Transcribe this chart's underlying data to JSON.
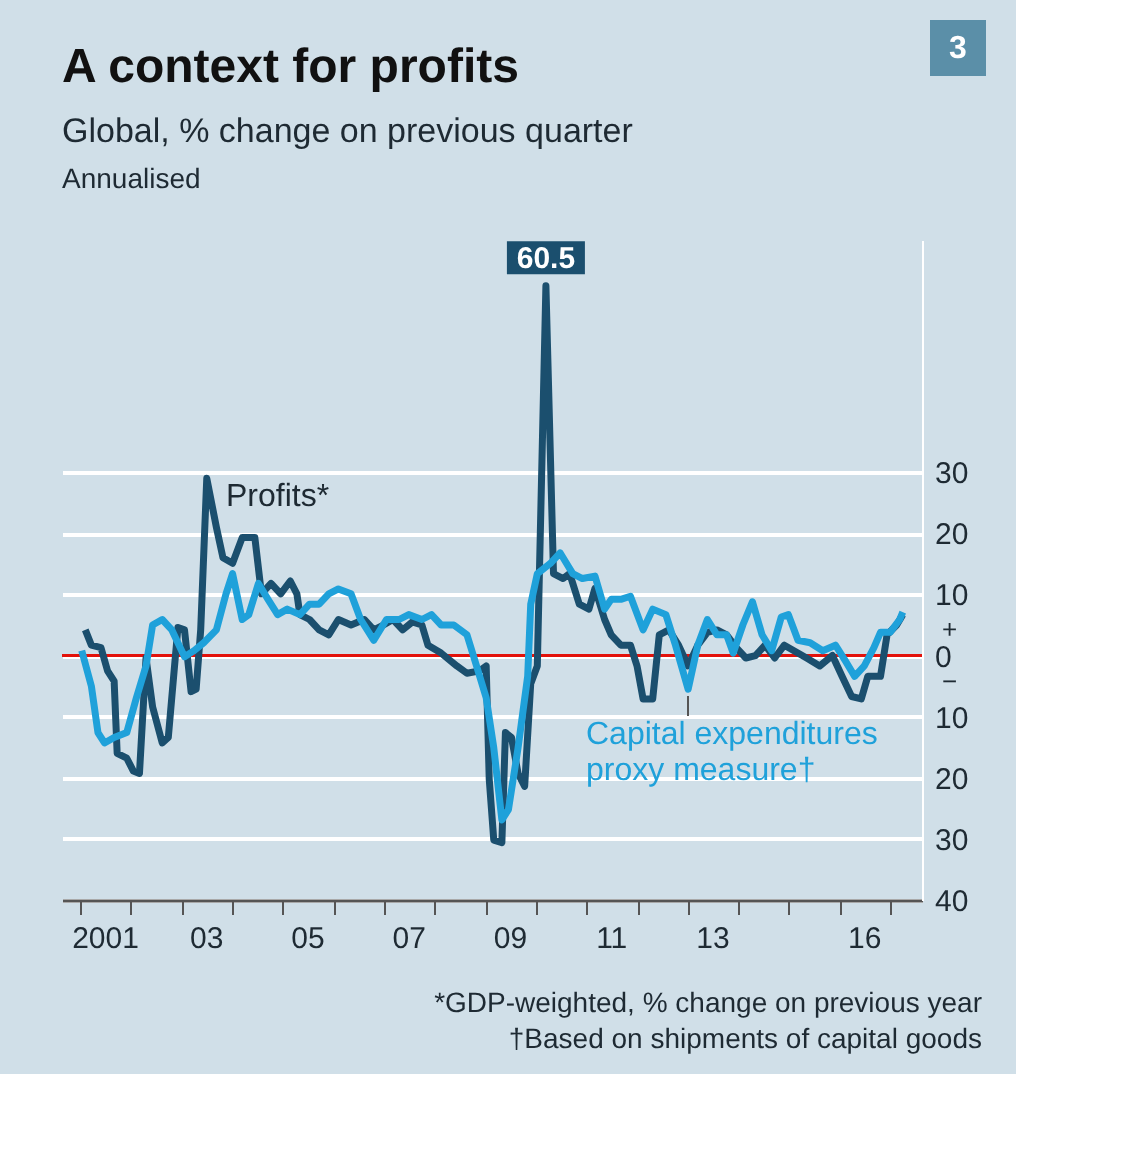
{
  "chart_data": {
    "type": "line",
    "title": "A context for profits",
    "subtitle": "Global, % change on previous quarter",
    "annotations": [
      "Annualised",
      "*GDP-weighted, % change on previous year",
      "†Based on shipments of capital goods",
      "3",
      "+",
      "−"
    ],
    "xlim": [
      2000.14,
      2017.13
    ],
    "xticks": [
      {
        "value": 2000.5,
        "label": null
      },
      {
        "value": 2001.5,
        "label": null
      },
      {
        "value": 2002.5,
        "label": null
      },
      {
        "value": 2003.5,
        "label": null
      },
      {
        "value": 2004.5,
        "label": null
      },
      {
        "value": 2005.5,
        "label": null
      },
      {
        "value": 2006.5,
        "label": null
      },
      {
        "value": 2007.5,
        "label": null
      },
      {
        "value": 2008.5,
        "label": null
      },
      {
        "value": 2009.5,
        "label": null
      },
      {
        "value": 2010.5,
        "label": null
      },
      {
        "value": 2011.5,
        "label": null
      },
      {
        "value": 2012.5,
        "label": null
      },
      {
        "value": 2013.5,
        "label": null
      },
      {
        "value": 2014.5,
        "label": null
      },
      {
        "value": 2015.5,
        "label": null
      },
      {
        "value": 2016.5,
        "label": null
      },
      {
        "value": 2001,
        "label": "2001"
      },
      {
        "value": 2003,
        "label": "03"
      },
      {
        "value": 2005,
        "label": "05"
      },
      {
        "value": 2007,
        "label": "07"
      },
      {
        "value": 2009,
        "label": "09"
      },
      {
        "value": 2011,
        "label": "11"
      },
      {
        "value": 2013,
        "label": "13"
      },
      {
        "value": 2016,
        "label": "16"
      }
    ],
    "ylim": [
      -40,
      68
    ],
    "yticks": [
      30,
      20,
      10,
      0,
      {
        "value": -10,
        "label": "10"
      },
      {
        "value": -20,
        "label": "20"
      },
      {
        "value": -30,
        "label": "30"
      },
      {
        "value": -40,
        "label": "40"
      }
    ],
    "grid": "y",
    "legend": false,
    "ref_lines": [
      {
        "axis": "y",
        "value": 0,
        "color": "#e3120b"
      }
    ],
    "series": [
      {
        "name": "Profits*",
        "color": "#1b4f6e",
        "x": [
          2000.6,
          2000.72,
          2000.91,
          2001.04,
          2001.17,
          2001.23,
          2001.42,
          2001.55,
          2001.67,
          2001.8,
          2001.93,
          2002.12,
          2002.24,
          2002.43,
          2002.56,
          2002.69,
          2002.79,
          2002.88,
          2003.0,
          2003.19,
          2003.32,
          2003.51,
          2003.7,
          2003.95,
          2004.08,
          2004.27,
          2004.46,
          2004.65,
          2004.78,
          2004.84,
          2005.03,
          2005.22,
          2005.41,
          2005.6,
          2005.85,
          2006.11,
          2006.3,
          2006.49,
          2006.68,
          2006.87,
          2007.06,
          2007.25,
          2007.37,
          2007.63,
          2007.94,
          2008.14,
          2008.39,
          2008.52,
          2008.58,
          2008.67,
          2008.83,
          2008.9,
          2009.02,
          2009.15,
          2009.28,
          2009.4,
          2009.53,
          2009.7,
          2009.85,
          2010.04,
          2010.17,
          2010.36,
          2010.55,
          2010.67,
          2010.86,
          2010.99,
          2011.18,
          2011.37,
          2011.5,
          2011.62,
          2011.81,
          2011.94,
          2012.13,
          2012.32,
          2012.51,
          2012.7,
          2012.89,
          2013.08,
          2013.27,
          2013.46,
          2013.65,
          2013.84,
          2014.03,
          2014.22,
          2014.41,
          2014.6,
          2014.85,
          2015.11,
          2015.36,
          2015.55,
          2015.74,
          2015.93,
          2016.06,
          2016.31,
          2016.44,
          2016.63,
          2016.75
        ],
        "values": [
          4.2,
          1.7,
          1.3,
          -2.5,
          -4.2,
          -16,
          -16.8,
          -18.9,
          -19.3,
          -0.4,
          -8.4,
          -14.3,
          -13.4,
          4.6,
          4.2,
          -5.9,
          -5.5,
          4.2,
          29,
          21,
          16,
          15.1,
          19.3,
          19.3,
          10.1,
          11.8,
          10.1,
          12.2,
          10.1,
          6.7,
          5.9,
          4.2,
          3.4,
          5.9,
          5.0,
          5.9,
          4.2,
          5.0,
          5.9,
          4.2,
          5.5,
          5.0,
          1.7,
          0.4,
          -1.7,
          -2.9,
          -2.5,
          -1.7,
          -20.2,
          -30.2,
          -30.6,
          -12.6,
          -13.4,
          -19.3,
          -21.4,
          -4.6,
          -1.7,
          60.5,
          13.4,
          12.6,
          13.4,
          8.4,
          7.6,
          11,
          5.9,
          3.4,
          1.7,
          1.7,
          -1.7,
          -7.1,
          -7.1,
          3.4,
          4.2,
          1.7,
          -1.7,
          1.7,
          3.8,
          4.2,
          3.4,
          1.3,
          -0.4,
          0,
          1.7,
          -0.4,
          1.7,
          0.8,
          -0.4,
          -1.7,
          0,
          -3.4,
          -6.7,
          -7.1,
          -3.4,
          -3.4,
          3.4,
          5.0,
          6.7
        ],
        "value_labels": [
          null,
          null,
          null,
          null,
          null,
          null,
          null,
          null,
          null,
          null,
          null,
          null,
          null,
          null,
          null,
          null,
          null,
          null,
          null,
          null,
          null,
          null,
          null,
          null,
          null,
          null,
          null,
          null,
          null,
          null,
          null,
          null,
          null,
          null,
          null,
          null,
          null,
          null,
          null,
          null,
          null,
          null,
          null,
          null,
          null,
          null,
          null,
          null,
          null,
          null,
          null,
          null,
          null,
          null,
          null,
          null,
          null,
          "60.5",
          null,
          null,
          null,
          null,
          null,
          null,
          null,
          null,
          null,
          null,
          null,
          null,
          null,
          null,
          null,
          null,
          null,
          null,
          null,
          null,
          null,
          null,
          null,
          null,
          null,
          null,
          null,
          null,
          null,
          null,
          null,
          null,
          null,
          null,
          null,
          null,
          null,
          null,
          null
        ]
      },
      {
        "name": "Capital expenditures\nproxy measure†",
        "color": "#1fa1da",
        "x": [
          2000.53,
          2000.72,
          2000.85,
          2000.98,
          2001.17,
          2001.42,
          2001.61,
          2001.8,
          2001.93,
          2002.12,
          2002.31,
          2002.56,
          2002.75,
          2002.94,
          2003.19,
          2003.38,
          2003.51,
          2003.7,
          2003.83,
          2004.02,
          2004.21,
          2004.4,
          2004.59,
          2004.84,
          2005.03,
          2005.22,
          2005.41,
          2005.6,
          2005.85,
          2006.04,
          2006.3,
          2006.55,
          2006.8,
          2006.99,
          2007.25,
          2007.44,
          2007.63,
          2007.88,
          2008.14,
          2008.33,
          2008.52,
          2008.67,
          2008.83,
          2008.96,
          2009.15,
          2009.34,
          2009.4,
          2009.53,
          2009.79,
          2009.98,
          2010.04,
          2010.23,
          2010.42,
          2010.67,
          2010.86,
          2010.99,
          2011.18,
          2011.37,
          2011.62,
          2011.81,
          2012.07,
          2012.26,
          2012.51,
          2012.7,
          2012.89,
          2013.08,
          2013.27,
          2013.4,
          2013.59,
          2013.78,
          2013.97,
          2014.16,
          2014.35,
          2014.49,
          2014.68,
          2014.92,
          2015.17,
          2015.42,
          2015.61,
          2015.8,
          2015.99,
          2016.18,
          2016.31,
          2016.5,
          2016.69,
          2016.75
        ],
        "values": [
          0.8,
          -5.0,
          -12.6,
          -14.3,
          -13.4,
          -12.6,
          -6.9,
          -1.7,
          5.0,
          5.9,
          4.2,
          -0.2,
          0.8,
          2.1,
          4.2,
          10.1,
          13.4,
          5.9,
          6.7,
          11.8,
          9.2,
          6.7,
          7.6,
          6.7,
          8.4,
          8.4,
          10.1,
          10.9,
          10.1,
          5.9,
          2.5,
          5.9,
          5.9,
          6.7,
          5.9,
          6.7,
          5.0,
          5.0,
          3.4,
          -1.7,
          -6.9,
          -15.1,
          -26.9,
          -25.2,
          -15.1,
          -3.4,
          8.4,
          13.4,
          15.1,
          16.8,
          16.0,
          13.4,
          12.6,
          13.0,
          7.6,
          9.2,
          9.2,
          9.7,
          4.2,
          7.6,
          6.7,
          1.7,
          -5.5,
          1.7,
          5.9,
          3.4,
          3.4,
          0.4,
          5.0,
          8.8,
          3.4,
          0.8,
          6.3,
          6.7,
          2.5,
          2.1,
          0.8,
          1.7,
          -0.8,
          -3.4,
          -1.7,
          1.3,
          3.8,
          3.8,
          5.9,
          7.1
        ]
      }
    ]
  }
}
